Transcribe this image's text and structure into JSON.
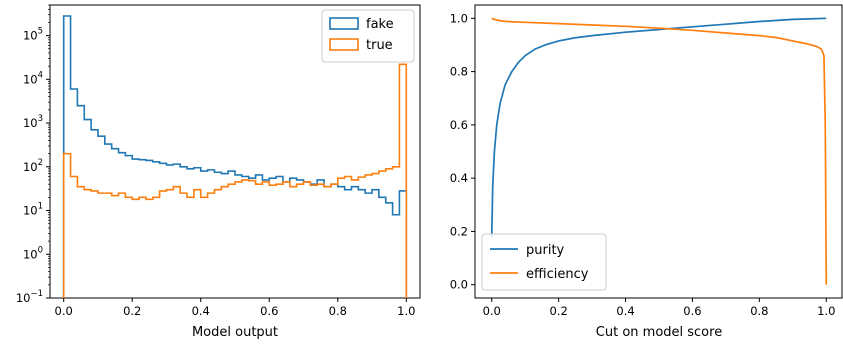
{
  "chart_data": [
    {
      "type": "histogram",
      "xlabel": "Model output",
      "ylabel": "",
      "xlim": [
        -0.04,
        1.04
      ],
      "ylim": [
        0.1,
        500000
      ],
      "yscale": "log",
      "xticks": [
        0.0,
        0.2,
        0.4,
        0.6,
        0.8,
        1.0
      ],
      "xtick_labels": [
        "0.0",
        "0.2",
        "0.4",
        "0.6",
        "0.8",
        "1.0"
      ],
      "yticks": [
        {
          "value": 0.1,
          "base": "10",
          "exp": "−1"
        },
        {
          "value": 1,
          "base": "10",
          "exp": "0"
        },
        {
          "value": 10,
          "base": "10",
          "exp": "1"
        },
        {
          "value": 100,
          "base": "10",
          "exp": "2"
        },
        {
          "value": 1000,
          "base": "10",
          "exp": "3"
        },
        {
          "value": 10000,
          "base": "10",
          "exp": "4"
        },
        {
          "value": 100000,
          "base": "10",
          "exp": "5"
        }
      ],
      "legend_position": "top-right",
      "bin_edges": [
        0.0,
        1.0
      ],
      "n_bins": 50,
      "series": [
        {
          "name": "fake",
          "color": "#1f77b4",
          "counts": [
            280000,
            6000,
            2500,
            1200,
            700,
            500,
            330,
            260,
            210,
            180,
            150,
            145,
            140,
            130,
            120,
            110,
            115,
            100,
            90,
            95,
            80,
            85,
            75,
            70,
            80,
            65,
            60,
            55,
            65,
            50,
            55,
            60,
            45,
            55,
            50,
            45,
            40,
            50,
            35,
            40,
            35,
            30,
            35,
            30,
            25,
            30,
            20,
            15,
            8,
            28
          ]
        },
        {
          "name": "true",
          "color": "#ff7f0e",
          "counts": [
            200,
            60,
            35,
            30,
            28,
            25,
            25,
            22,
            25,
            20,
            18,
            20,
            18,
            20,
            28,
            30,
            35,
            25,
            20,
            30,
            20,
            25,
            30,
            35,
            40,
            45,
            50,
            48,
            40,
            45,
            38,
            40,
            45,
            35,
            40,
            45,
            38,
            40,
            35,
            40,
            55,
            60,
            50,
            58,
            65,
            70,
            80,
            90,
            100,
            22000
          ]
        }
      ]
    },
    {
      "type": "line",
      "xlabel": "Cut on model score",
      "ylabel": "",
      "xlim": [
        -0.05,
        1.05
      ],
      "ylim": [
        -0.05,
        1.05
      ],
      "xticks": [
        0.0,
        0.2,
        0.4,
        0.6,
        0.8,
        1.0
      ],
      "xtick_labels": [
        "0.0",
        "0.2",
        "0.4",
        "0.6",
        "0.8",
        "1.0"
      ],
      "yticks": [
        0.0,
        0.2,
        0.4,
        0.6,
        0.8,
        1.0
      ],
      "ytick_labels": [
        "0.0",
        "0.2",
        "0.4",
        "0.6",
        "0.8",
        "1.0"
      ],
      "legend_position": "bottom-left",
      "series": [
        {
          "name": "purity",
          "color": "#1f77b4",
          "x": [
            0.0,
            0.003,
            0.008,
            0.015,
            0.025,
            0.04,
            0.06,
            0.08,
            0.1,
            0.13,
            0.16,
            0.2,
            0.25,
            0.3,
            0.4,
            0.5,
            0.6,
            0.7,
            0.8,
            0.9,
            0.95,
            1.0
          ],
          "y": [
            0.18,
            0.37,
            0.5,
            0.6,
            0.68,
            0.75,
            0.8,
            0.835,
            0.86,
            0.885,
            0.9,
            0.915,
            0.927,
            0.935,
            0.948,
            0.958,
            0.968,
            0.978,
            0.988,
            0.996,
            0.998,
            1.0
          ]
        },
        {
          "name": "efficiency",
          "color": "#ff7f0e",
          "x": [
            0.0,
            0.01,
            0.03,
            0.06,
            0.1,
            0.2,
            0.3,
            0.4,
            0.5,
            0.6,
            0.7,
            0.8,
            0.85,
            0.9,
            0.94,
            0.97,
            0.985,
            0.993,
            0.997,
            1.0
          ],
          "y": [
            1.0,
            0.995,
            0.99,
            0.987,
            0.985,
            0.98,
            0.975,
            0.97,
            0.963,
            0.955,
            0.945,
            0.935,
            0.928,
            0.915,
            0.905,
            0.895,
            0.885,
            0.86,
            0.6,
            0.0
          ]
        }
      ]
    }
  ]
}
